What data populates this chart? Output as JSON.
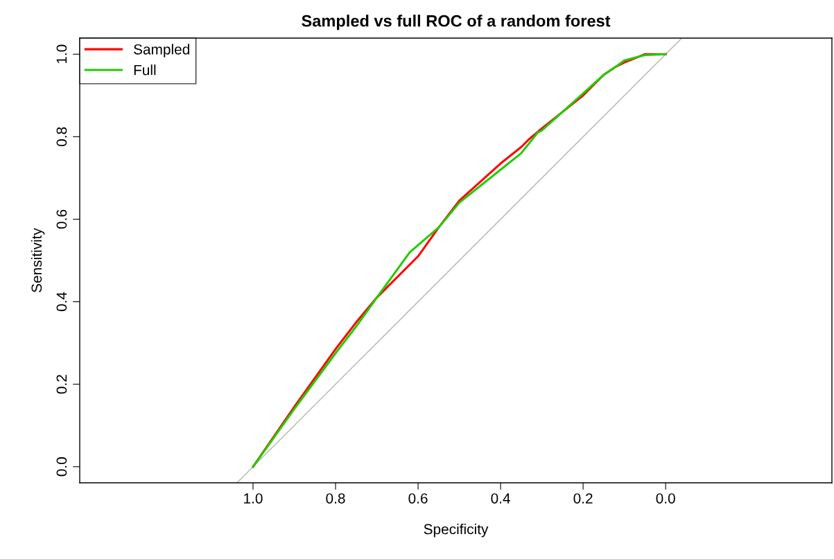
{
  "chart_data": {
    "type": "line",
    "title": "Sampled vs full ROC of a random forest",
    "xlabel": "Specificity",
    "ylabel": "Sensitivity",
    "xlim": [
      1.42,
      -0.403
    ],
    "ylim": [
      -0.039,
      1.039
    ],
    "xticks": [
      {
        "value": 1.0,
        "label": "1.0"
      },
      {
        "value": 0.8,
        "label": "0.8"
      },
      {
        "value": 0.6,
        "label": "0.6"
      },
      {
        "value": 0.4,
        "label": "0.4"
      },
      {
        "value": 0.2,
        "label": "0.2"
      },
      {
        "value": 0.0,
        "label": "0.0"
      }
    ],
    "yticks": [
      {
        "value": 0.0,
        "label": "0.0"
      },
      {
        "value": 0.2,
        "label": "0.2"
      },
      {
        "value": 0.4,
        "label": "0.4"
      },
      {
        "value": 0.6,
        "label": "0.6"
      },
      {
        "value": 0.8,
        "label": "0.8"
      },
      {
        "value": 1.0,
        "label": "1.0"
      }
    ],
    "grid": false,
    "legend": "top left",
    "marker": "none",
    "line_style": "solid",
    "series": [
      {
        "color": "#bebebe",
        "x": [
          1.039,
          -0.039
        ],
        "values": [
          -0.039,
          1.039
        ]
      },
      {
        "name": "Sampled",
        "color": "#ff0000",
        "x": [
          1.0,
          0.9,
          0.8,
          0.75,
          0.7,
          0.6,
          0.55,
          0.5,
          0.45,
          0.4,
          0.35,
          0.33,
          0.3,
          0.25,
          0.2,
          0.15,
          0.12,
          0.1,
          0.05,
          0.0
        ],
        "values": [
          0,
          0.145,
          0.285,
          0.35,
          0.41,
          0.51,
          0.58,
          0.645,
          0.69,
          0.735,
          0.775,
          0.795,
          0.82,
          0.86,
          0.9,
          0.95,
          0.97,
          0.98,
          1.0,
          1.0
        ]
      },
      {
        "name": "Full",
        "color": "#22cc00",
        "x": [
          1.0,
          0.9,
          0.8,
          0.75,
          0.7,
          0.62,
          0.55,
          0.5,
          0.45,
          0.4,
          0.35,
          0.31,
          0.3,
          0.25,
          0.2,
          0.15,
          0.12,
          0.1,
          0.05,
          0.0
        ],
        "values": [
          0,
          0.14,
          0.275,
          0.34,
          0.41,
          0.52,
          0.58,
          0.64,
          0.68,
          0.72,
          0.76,
          0.81,
          0.815,
          0.86,
          0.905,
          0.95,
          0.97,
          0.985,
          0.998,
          1.0
        ]
      }
    ]
  }
}
